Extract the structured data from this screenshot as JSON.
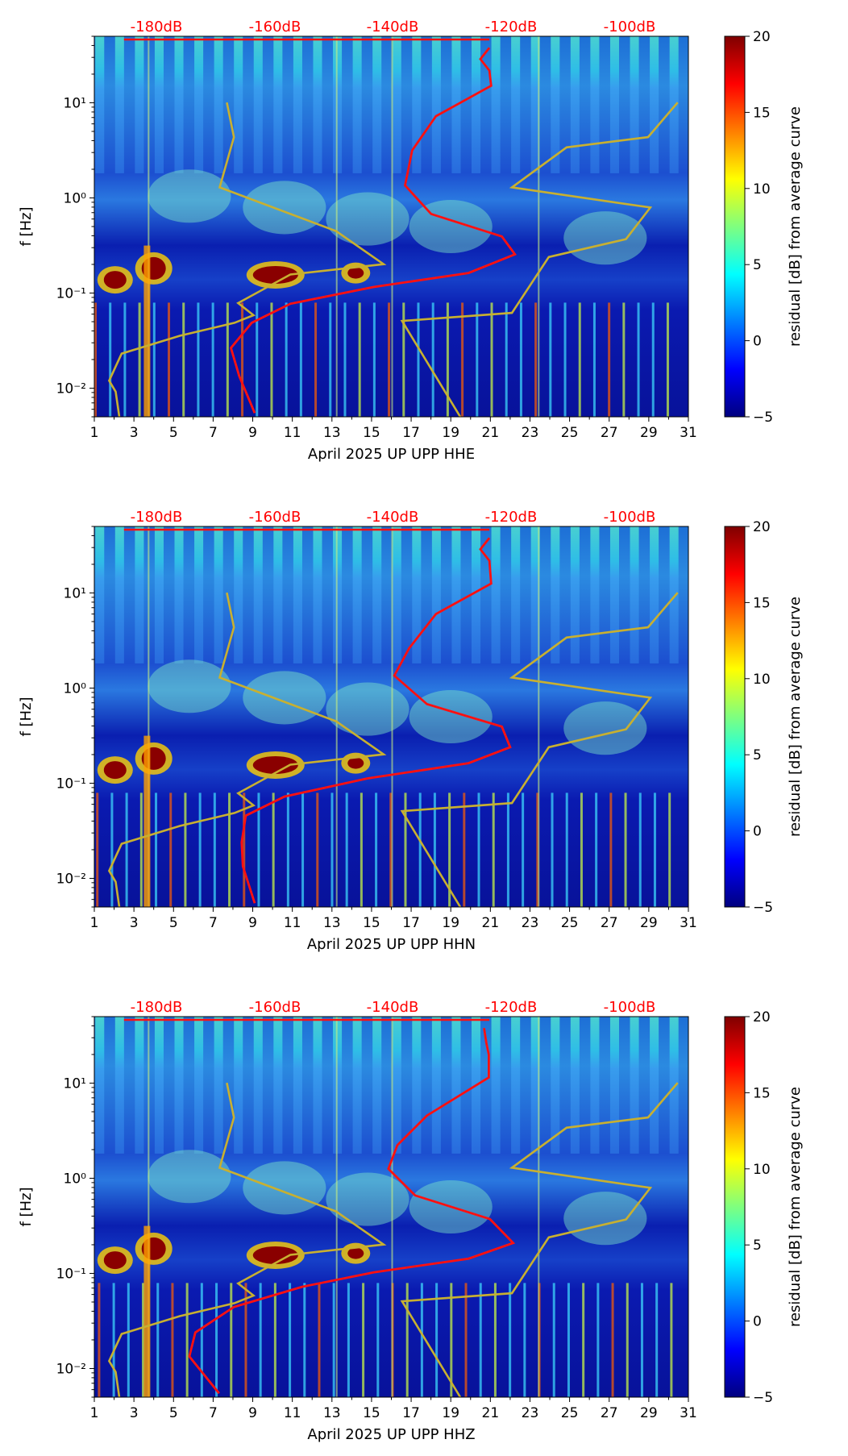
{
  "chart_data": [
    {
      "type": "heatmap",
      "xlabel": "April 2025 UP UPP  HHE",
      "ylabel": "f [Hz]",
      "x_ticks": [
        "1",
        "3",
        "5",
        "7",
        "9",
        "11",
        "13",
        "15",
        "17",
        "19",
        "21",
        "23",
        "25",
        "27",
        "29",
        "31"
      ],
      "xlim": [
        1,
        31
      ],
      "y_scale": "log",
      "y_ticks": [
        {
          "value": 0.01,
          "label": "10⁻²"
        },
        {
          "value": 0.1,
          "label": "10⁻¹"
        },
        {
          "value": 1,
          "label": "10⁰"
        },
        {
          "value": 10,
          "label": "10¹"
        }
      ],
      "ylim": [
        0.005,
        50
      ],
      "top_labels": [
        "-180dB",
        "-160dB",
        "-140dB",
        "-120dB",
        "-100dB"
      ],
      "colorbar": {
        "label": "residual [dB] from average curve",
        "ticks": [
          "20",
          "15",
          "10",
          "5",
          "0",
          "−5"
        ],
        "range": [
          -5,
          20
        ]
      }
    },
    {
      "type": "heatmap",
      "xlabel": "April 2025 UP UPP  HHN",
      "ylabel": "f [Hz]",
      "x_ticks": [
        "1",
        "3",
        "5",
        "7",
        "9",
        "11",
        "13",
        "15",
        "17",
        "19",
        "21",
        "23",
        "25",
        "27",
        "29",
        "31"
      ],
      "xlim": [
        1,
        31
      ],
      "y_scale": "log",
      "y_ticks": [
        {
          "value": 0.01,
          "label": "10⁻²"
        },
        {
          "value": 0.1,
          "label": "10⁻¹"
        },
        {
          "value": 1,
          "label": "10⁰"
        },
        {
          "value": 10,
          "label": "10¹"
        }
      ],
      "ylim": [
        0.005,
        50
      ],
      "top_labels": [
        "-180dB",
        "-160dB",
        "-140dB",
        "-120dB",
        "-100dB"
      ],
      "colorbar": {
        "label": "residual [dB] from average curve",
        "ticks": [
          "20",
          "15",
          "10",
          "5",
          "0",
          "−5"
        ],
        "range": [
          -5,
          20
        ]
      }
    },
    {
      "type": "heatmap",
      "xlabel": "April 2025 UP UPP  HHZ",
      "ylabel": "f [Hz]",
      "x_ticks": [
        "1",
        "3",
        "5",
        "7",
        "9",
        "11",
        "13",
        "15",
        "17",
        "19",
        "21",
        "23",
        "25",
        "27",
        "29",
        "31"
      ],
      "xlim": [
        1,
        31
      ],
      "y_scale": "log",
      "y_ticks": [
        {
          "value": 0.01,
          "label": "10⁻²"
        },
        {
          "value": 0.1,
          "label": "10⁻¹"
        },
        {
          "value": 1,
          "label": "10⁰"
        },
        {
          "value": 10,
          "label": "10¹"
        }
      ],
      "ylim": [
        0.005,
        50
      ],
      "top_labels": [
        "-180dB",
        "-160dB",
        "-140dB",
        "-120dB",
        "-100dB"
      ],
      "colorbar": {
        "label": "residual [dB] from average curve",
        "ticks": [
          "20",
          "15",
          "10",
          "5",
          "0",
          "−5"
        ],
        "range": [
          -5,
          20
        ]
      }
    }
  ],
  "colors": {
    "noise_model": "#c8b030",
    "psd_curve": "#ff1010",
    "db_label": "#ff0000"
  }
}
